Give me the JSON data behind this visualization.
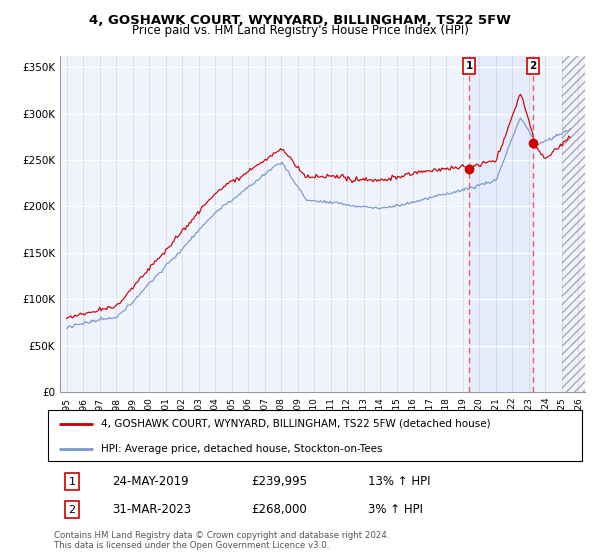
{
  "title": "4, GOSHAWK COURT, WYNYARD, BILLINGHAM, TS22 5FW",
  "subtitle": "Price paid vs. HM Land Registry's House Price Index (HPI)",
  "ylabel_ticks": [
    "£0",
    "£50K",
    "£100K",
    "£150K",
    "£200K",
    "£250K",
    "£300K",
    "£350K"
  ],
  "ytick_values": [
    0,
    50000,
    100000,
    150000,
    200000,
    250000,
    300000,
    350000
  ],
  "ylim": [
    0,
    362000
  ],
  "xlim_start": 1994.6,
  "xlim_end": 2026.4,
  "red_line_color": "#cc0000",
  "blue_line_color": "#7799cc",
  "vline_color": "#ee4444",
  "shade_color": "#ddeeff",
  "hatch_color": "#cccccc",
  "transaction1_x": 2019.37,
  "transaction1_y": 239995,
  "transaction2_x": 2023.25,
  "transaction2_y": 268000,
  "legend_line1": "4, GOSHAWK COURT, WYNYARD, BILLINGHAM, TS22 5FW (detached house)",
  "legend_line2": "HPI: Average price, detached house, Stockton-on-Tees",
  "annotation1_date": "24-MAY-2019",
  "annotation1_price": "£239,995",
  "annotation1_hpi": "13% ↑ HPI",
  "annotation2_date": "31-MAR-2023",
  "annotation2_price": "£268,000",
  "annotation2_hpi": "3% ↑ HPI",
  "footer": "Contains HM Land Registry data © Crown copyright and database right 2024.\nThis data is licensed under the Open Government Licence v3.0.",
  "background_color": "#ffffff",
  "plot_bg_color": "#f0f4ff",
  "xtick_years": [
    1995,
    1996,
    1997,
    1998,
    1999,
    2000,
    2001,
    2002,
    2003,
    2004,
    2005,
    2006,
    2007,
    2008,
    2009,
    2010,
    2011,
    2012,
    2013,
    2014,
    2015,
    2016,
    2017,
    2018,
    2019,
    2020,
    2021,
    2022,
    2023,
    2024,
    2025,
    2026
  ]
}
